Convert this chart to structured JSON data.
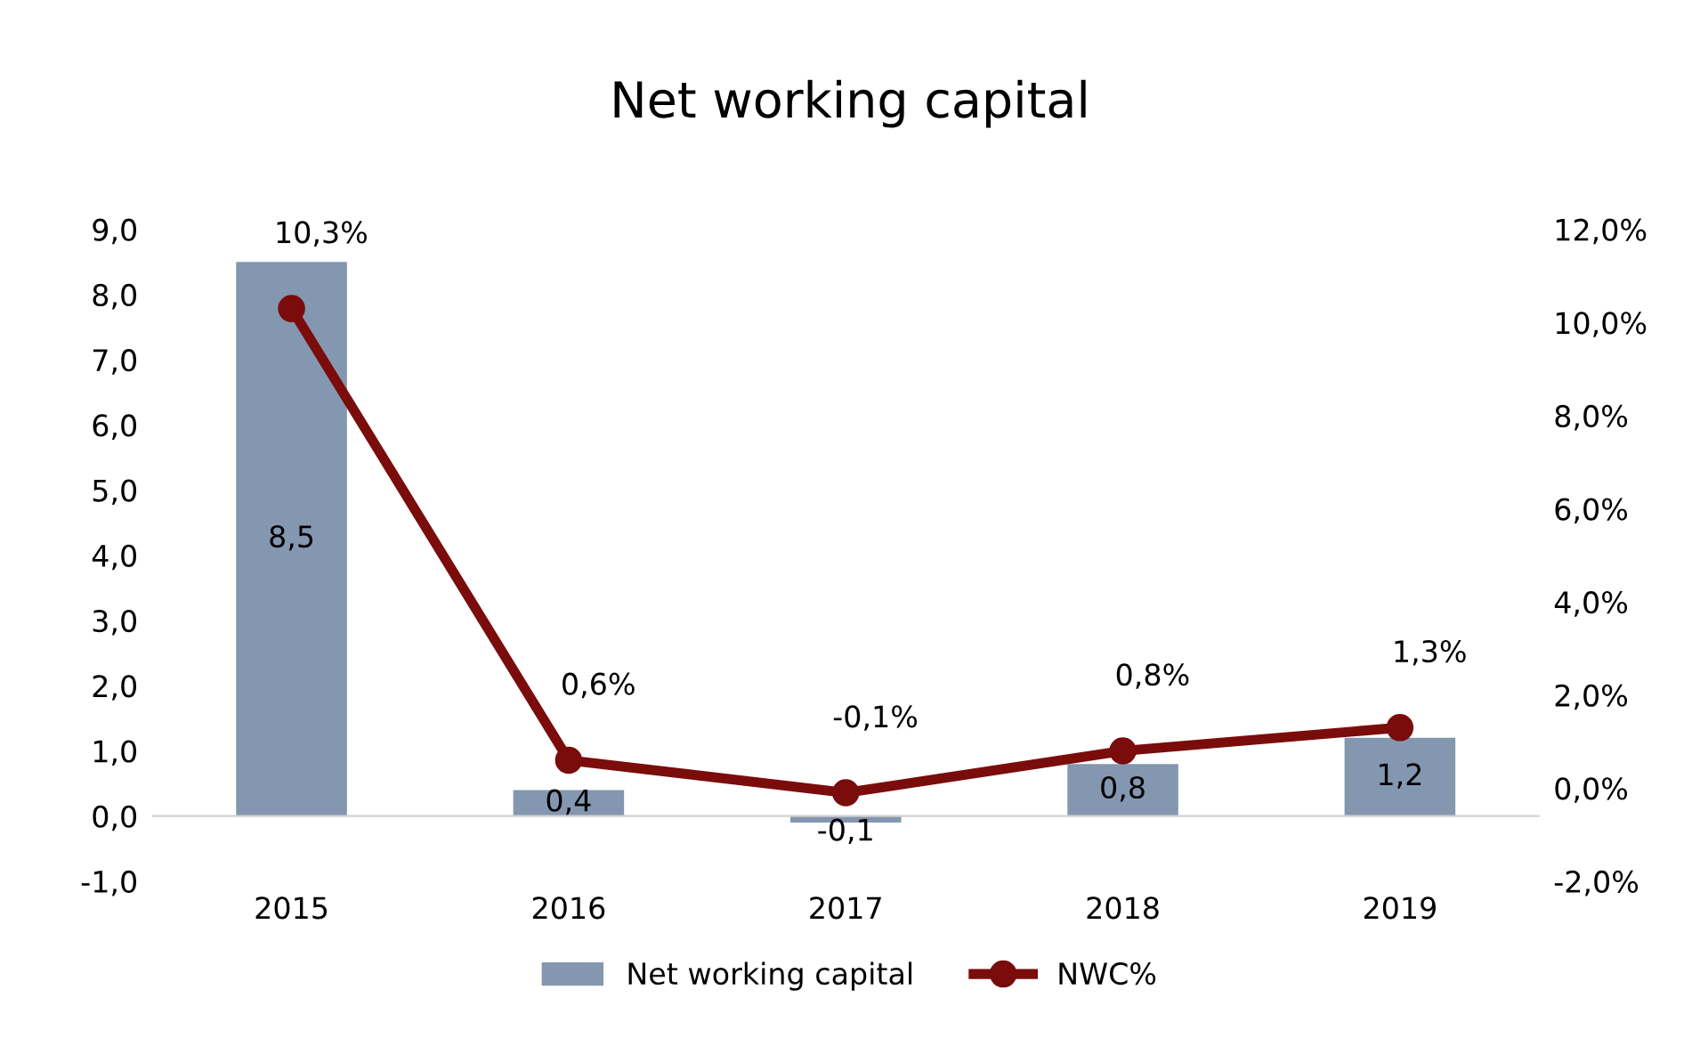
{
  "chart_data": {
    "type": "bar",
    "title": "Net working capital",
    "categories": [
      "2015",
      "2016",
      "2017",
      "2018",
      "2019"
    ],
    "series": [
      {
        "name": "Net working capital",
        "color": "#8497b0",
        "values": [
          8.5,
          0.4,
          -0.1,
          0.8,
          1.2
        ],
        "value_labels": [
          "8,5",
          "0,4",
          "-0,1",
          "0,8",
          "1,2"
        ]
      },
      {
        "name": "NWC%",
        "type": "line",
        "axis": "y2",
        "color": "#7b0c0c",
        "marker": "circle",
        "values": [
          10.3,
          0.6,
          -0.1,
          0.8,
          1.3
        ],
        "value_labels": [
          "10,3%",
          "0,6%",
          "-0,1%",
          "0,8%",
          "1,3%"
        ]
      }
    ],
    "ylim": [
      -1,
      9
    ],
    "yticks": [
      {
        "value": -1,
        "label": "-1,0"
      },
      {
        "value": 0,
        "label": "0,0"
      },
      {
        "value": 1,
        "label": "1,0"
      },
      {
        "value": 2,
        "label": "2,0"
      },
      {
        "value": 3,
        "label": "3,0"
      },
      {
        "value": 4,
        "label": "4,0"
      },
      {
        "value": 5,
        "label": "5,0"
      },
      {
        "value": 6,
        "label": "6,0"
      },
      {
        "value": 7,
        "label": "7,0"
      },
      {
        "value": 8,
        "label": "8,0"
      },
      {
        "value": 9,
        "label": "9,0"
      }
    ],
    "y2lim": [
      -2,
      12
    ],
    "y2ticks": [
      {
        "value": -2,
        "label": "-2,0%"
      },
      {
        "value": 0,
        "label": "0,0%"
      },
      {
        "value": 2,
        "label": "2,0%"
      },
      {
        "value": 4,
        "label": "4,0%"
      },
      {
        "value": 6,
        "label": "6,0%"
      },
      {
        "value": 8,
        "label": "8,0%"
      },
      {
        "value": 10,
        "label": "10,0%"
      },
      {
        "value": 12,
        "label": "12,0%"
      }
    ],
    "legend": "bottom"
  }
}
